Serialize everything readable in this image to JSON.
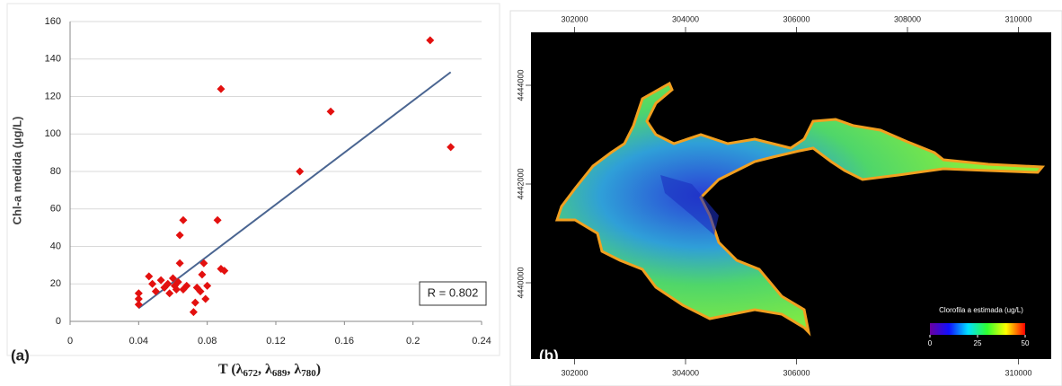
{
  "chart_data": {
    "type": "scatter",
    "y_label": "Chl-a medida (µg/L)",
    "x_label_parts": [
      "T (λ",
      "672",
      ", λ",
      "689",
      ", λ",
      "780",
      ")"
    ],
    "x": [
      0.04,
      0.04,
      0.04,
      0.046,
      0.048,
      0.05,
      0.053,
      0.055,
      0.057,
      0.058,
      0.06,
      0.061,
      0.062,
      0.063,
      0.064,
      0.064,
      0.066,
      0.066,
      0.068,
      0.072,
      0.073,
      0.074,
      0.076,
      0.077,
      0.078,
      0.079,
      0.08,
      0.086,
      0.088,
      0.088,
      0.09,
      0.134,
      0.152,
      0.21,
      0.222
    ],
    "values": [
      9,
      12,
      15,
      24,
      20,
      16,
      22,
      18,
      20,
      15,
      23,
      19,
      17,
      21,
      31,
      46,
      54,
      17,
      19,
      5,
      10,
      18,
      16,
      25,
      31,
      12,
      19,
      54,
      124,
      28,
      27,
      80,
      112,
      150,
      93
    ],
    "color": "#e3100f",
    "xlim": [
      0,
      0.24
    ],
    "xticks": [
      0,
      0.04,
      0.08,
      0.12,
      0.16,
      0.2,
      0.24
    ],
    "ylim": [
      0,
      160
    ],
    "yticks": [
      0,
      20,
      40,
      60,
      80,
      100,
      120,
      140,
      160
    ],
    "grid": true,
    "trendline": {
      "x": [
        0.04,
        0.222
      ],
      "values": [
        7,
        133
      ],
      "color": "#4a6591"
    },
    "annotation": "R = 0.802",
    "panel_label": "(a)"
  },
  "map": {
    "panel_label": "(b)",
    "top_xticks": [
      302000,
      304000,
      306000,
      308000,
      310000
    ],
    "bottom_xticks": [
      302000,
      304000,
      306000,
      310000
    ],
    "yticks": [
      4444000,
      4442000,
      4440000
    ],
    "colorbar": {
      "title": "Clorofila a estimada (ug/L)",
      "lim": [
        0,
        50
      ],
      "ticks": [
        0,
        25,
        50
      ]
    }
  }
}
